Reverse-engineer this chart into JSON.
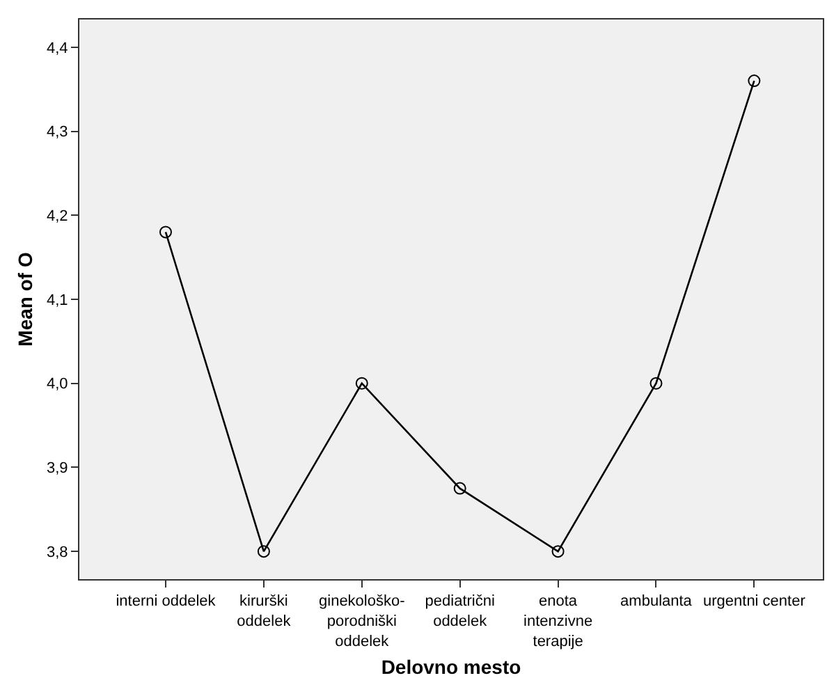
{
  "chart_data": {
    "type": "line",
    "xlabel": "Delovno mesto",
    "ylabel": "Mean of O",
    "categories": [
      "interni oddelek",
      "kirurški\noddelek",
      "ginekološko-\nporodniški\noddelek",
      "pediatrični\noddelek",
      "enota\nintenzivne\nterapije",
      "ambulanta",
      "urgentni center"
    ],
    "series": [
      {
        "color": "#000000",
        "values": [
          4.18,
          3.8,
          4.0,
          3.875,
          3.8,
          4.0,
          4.36
        ]
      }
    ],
    "ylim": [
      3.767,
      4.433
    ],
    "yticks": [
      {
        "value": 3.8,
        "label": "3,8"
      },
      {
        "value": 3.9,
        "label": "3,9"
      },
      {
        "value": 4.0,
        "label": "4,0"
      },
      {
        "value": 4.1,
        "label": "4,1"
      },
      {
        "value": 4.2,
        "label": "4,2"
      },
      {
        "value": 4.3,
        "label": "4,3"
      },
      {
        "value": 4.4,
        "label": "4,4"
      }
    ],
    "grid": false,
    "legend": false,
    "marker": "circle",
    "line_style": "solid"
  }
}
